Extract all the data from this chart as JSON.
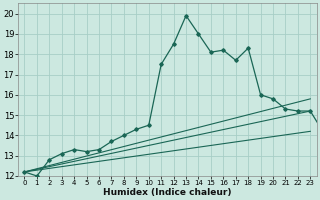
{
  "xlabel": "Humidex (Indice chaleur)",
  "bg_color": "#cce8e0",
  "grid_color": "#a8cec6",
  "line_color": "#1a6655",
  "xlim": [
    -0.5,
    23.5
  ],
  "ylim": [
    12,
    20.5
  ],
  "xticks": [
    0,
    1,
    2,
    3,
    4,
    5,
    6,
    7,
    8,
    9,
    10,
    11,
    12,
    13,
    14,
    15,
    16,
    17,
    18,
    19,
    20,
    21,
    22,
    23
  ],
  "yticks": [
    12,
    13,
    14,
    15,
    16,
    17,
    18,
    19,
    20
  ],
  "curve_main": [
    12.2,
    12.0,
    12.8,
    13.1,
    13.3,
    13.2,
    13.3,
    13.7,
    14.0,
    14.3,
    14.5,
    17.5,
    18.5,
    19.9,
    19.0,
    18.1,
    18.2,
    17.7,
    18.3,
    16.0,
    15.8,
    15.3,
    15.2,
    15.2,
    14.2
  ],
  "straight_lines": [
    {
      "x": [
        0,
        23
      ],
      "y": [
        12.2,
        14.2
      ]
    },
    {
      "x": [
        0,
        23
      ],
      "y": [
        12.2,
        15.2
      ]
    },
    {
      "x": [
        0,
        23
      ],
      "y": [
        12.2,
        15.8
      ]
    }
  ]
}
